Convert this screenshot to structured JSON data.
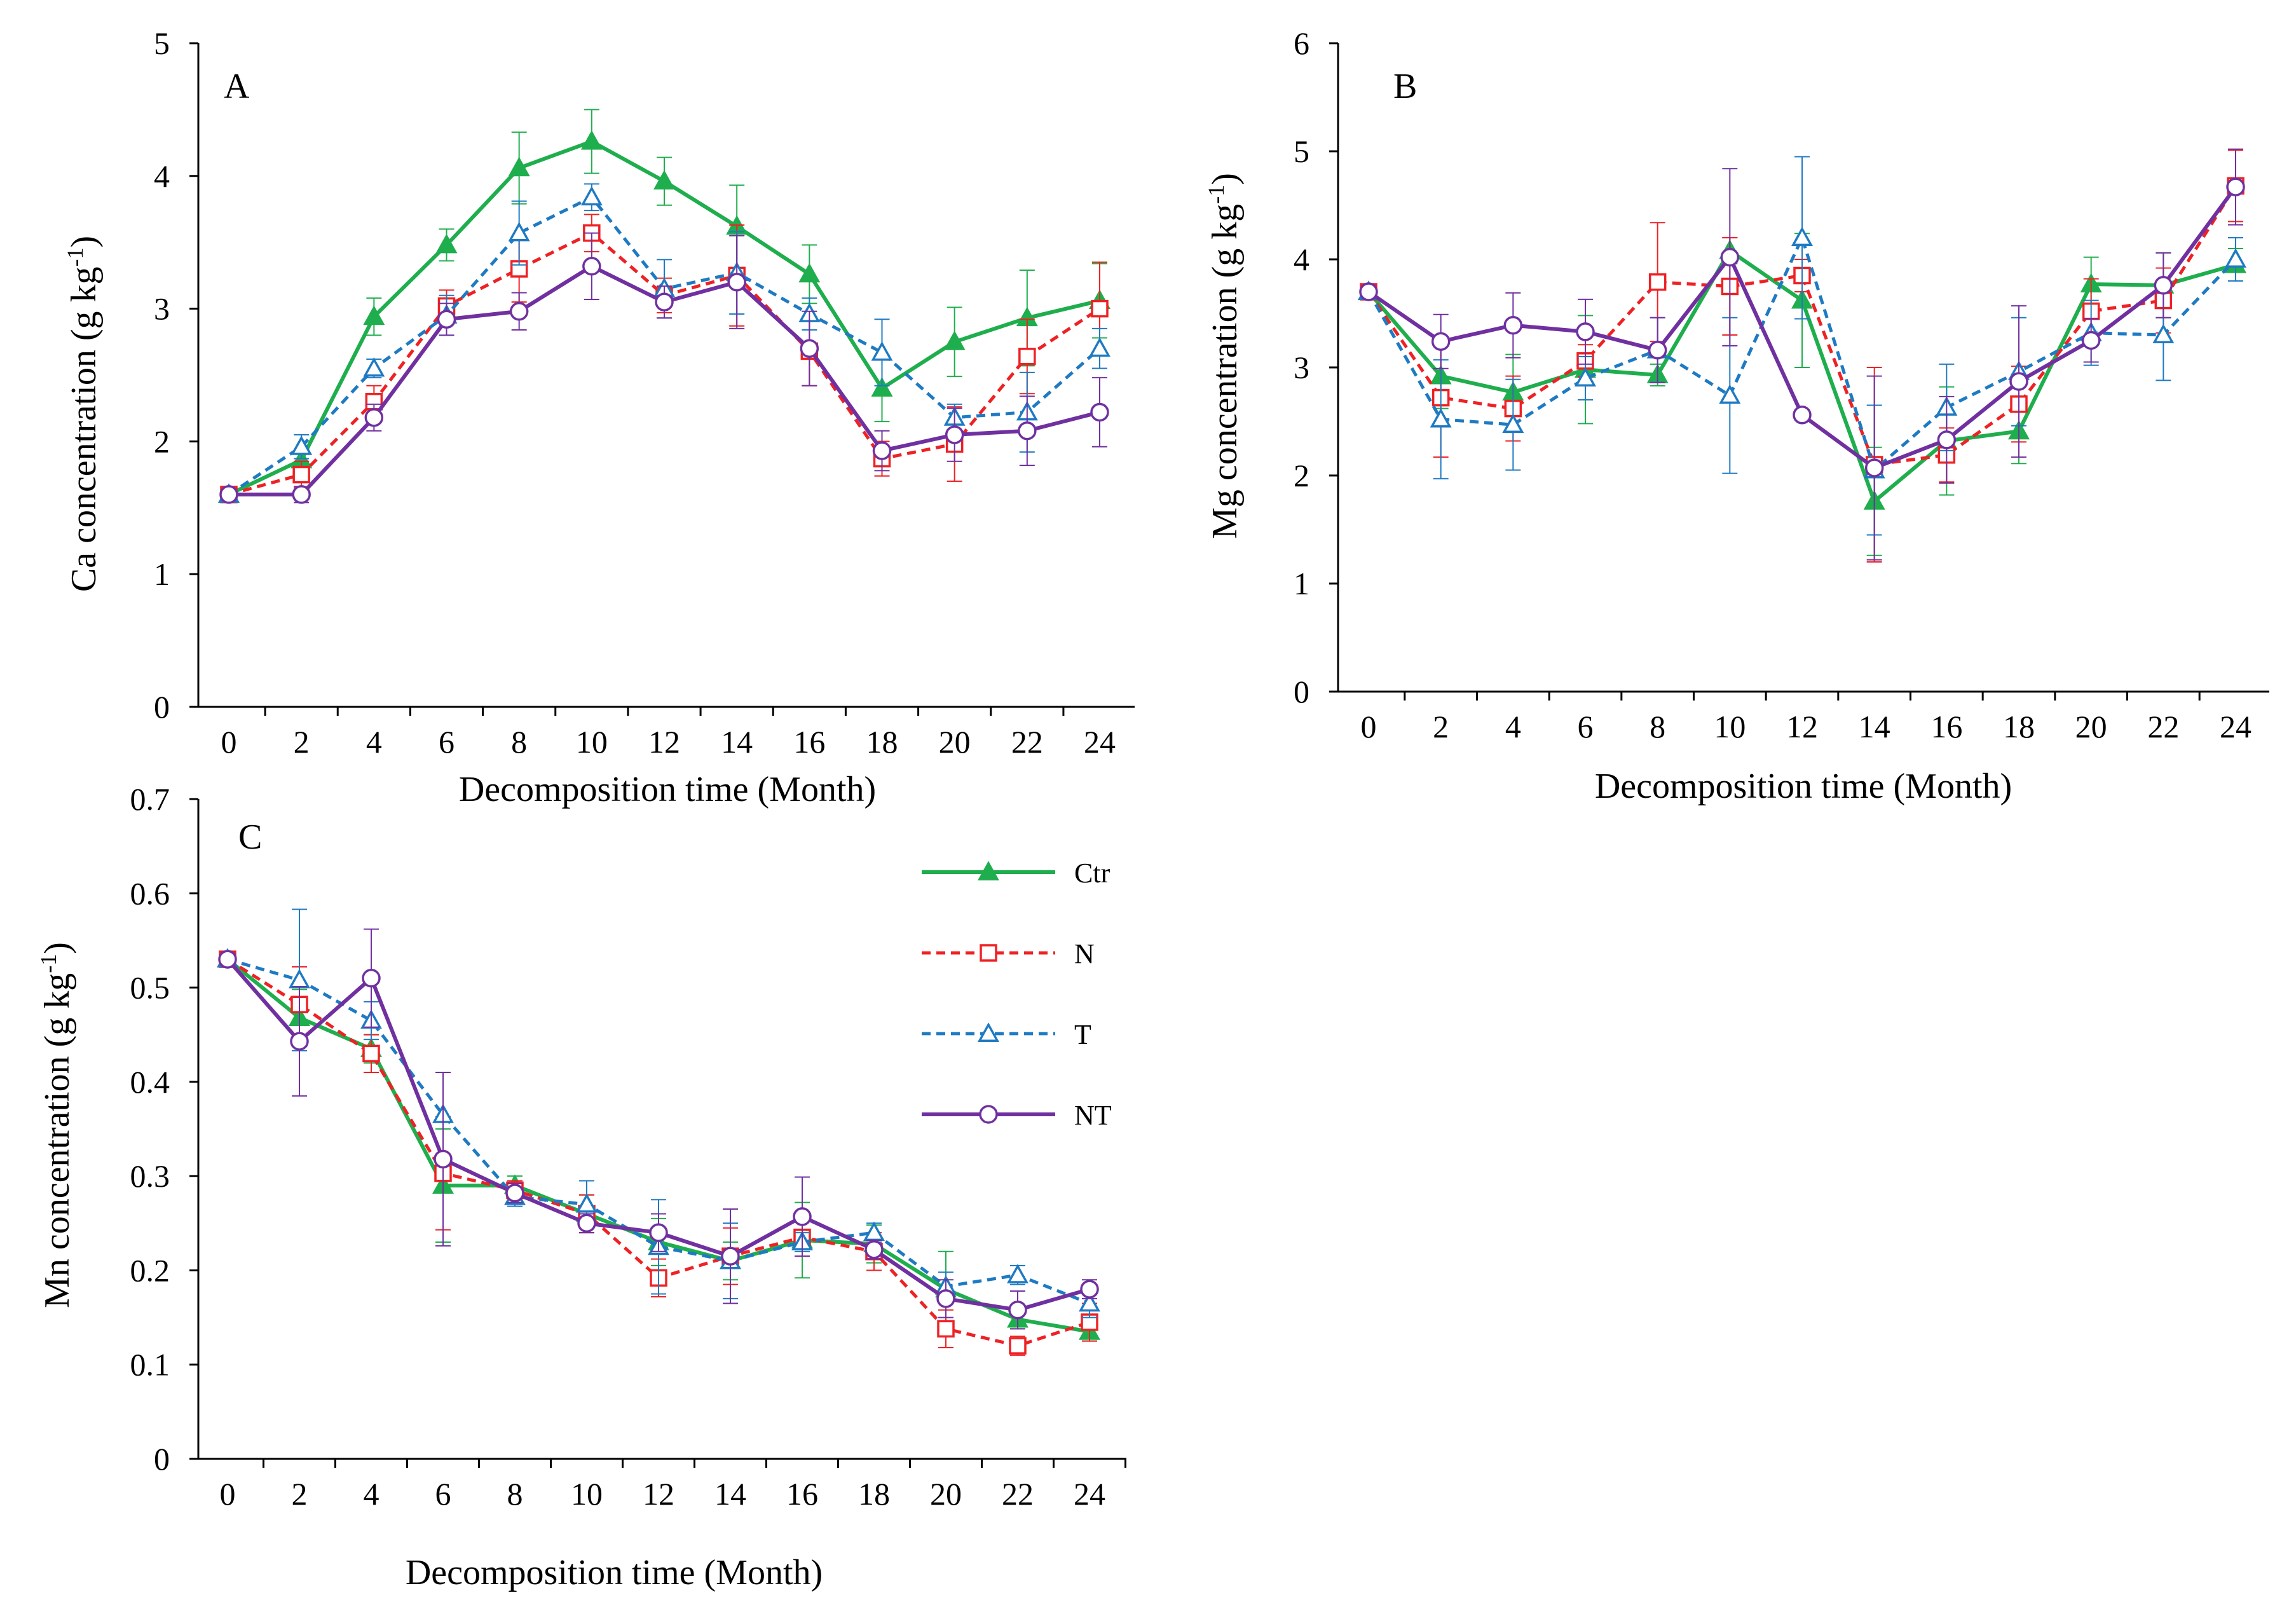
{
  "series_styles": [
    {
      "name": "Ctr",
      "color": "#1fae4d",
      "dash": "solid",
      "marker": "triangle-filled"
    },
    {
      "name": "N",
      "color": "#ee2124",
      "dash": "dashed",
      "marker": "square-open"
    },
    {
      "name": "T",
      "color": "#1e7ac2",
      "dash": "dashed",
      "marker": "triangle-open"
    },
    {
      "name": "NT",
      "color": "#7030a0",
      "dash": "solid",
      "marker": "circle-open"
    }
  ],
  "legend": {
    "labels": [
      "Ctr",
      "N",
      "T",
      "NT"
    ],
    "position": "upper-right of panel C"
  },
  "chart_data": [
    {
      "panel": "A",
      "type": "line",
      "xlabel": "Decomposition time (Month)",
      "ylabel": "Ca concentration (g kg⁻¹)",
      "ylim": [
        0,
        5
      ],
      "yticks": [
        0,
        1,
        2,
        3,
        4,
        5
      ],
      "x": [
        0,
        2,
        4,
        6,
        8,
        10,
        12,
        14,
        16,
        18,
        20,
        22,
        24
      ],
      "series": [
        {
          "name": "Ctr",
          "values": [
            1.6,
            1.86,
            2.94,
            3.48,
            4.06,
            4.26,
            3.96,
            3.62,
            3.26,
            2.4,
            2.75,
            2.93,
            3.06
          ],
          "errors": [
            0.03,
            0.08,
            0.14,
            0.12,
            0.27,
            0.24,
            0.18,
            0.31,
            0.22,
            0.25,
            0.26,
            0.36,
            0.28
          ]
        },
        {
          "name": "N",
          "values": [
            1.6,
            1.75,
            2.3,
            3.02,
            3.3,
            3.57,
            3.1,
            3.25,
            2.68,
            1.87,
            1.98,
            2.64,
            3.0
          ],
          "errors": [
            0.03,
            0.1,
            0.12,
            0.12,
            0.25,
            0.14,
            0.13,
            0.38,
            0.26,
            0.13,
            0.28,
            0.28,
            0.35
          ]
        },
        {
          "name": "T",
          "values": [
            1.6,
            1.96,
            2.55,
            2.95,
            3.57,
            3.84,
            3.15,
            3.27,
            2.96,
            2.67,
            2.18,
            2.22,
            2.7
          ],
          "errors": [
            0.03,
            0.09,
            0.07,
            0.15,
            0.24,
            0.1,
            0.22,
            0.31,
            0.12,
            0.25,
            0.1,
            0.3,
            0.15
          ]
        },
        {
          "name": "NT",
          "values": [
            1.6,
            1.6,
            2.18,
            2.92,
            2.98,
            3.32,
            3.05,
            3.2,
            2.7,
            1.93,
            2.05,
            2.08,
            2.22
          ],
          "errors": [
            0.03,
            0.06,
            0.1,
            0.12,
            0.14,
            0.25,
            0.12,
            0.35,
            0.28,
            0.15,
            0.2,
            0.26,
            0.26
          ]
        }
      ]
    },
    {
      "panel": "B",
      "type": "line",
      "xlabel": "Decomposition time (Month)",
      "ylabel": "Mg concentration (g kg⁻¹)",
      "ylim": [
        0,
        6
      ],
      "yticks": [
        0,
        1,
        2,
        3,
        4,
        5,
        6
      ],
      "x": [
        0,
        2,
        4,
        6,
        8,
        10,
        12,
        14,
        16,
        18,
        20,
        22,
        24
      ],
      "series": [
        {
          "name": "Ctr",
          "values": [
            3.7,
            2.92,
            2.77,
            2.98,
            2.93,
            4.08,
            3.62,
            1.76,
            2.32,
            2.41,
            3.77,
            3.76,
            3.95
          ],
          "errors": [
            0.04,
            0.3,
            0.35,
            0.5,
            0.1,
            0.12,
            0.62,
            0.5,
            0.5,
            0.3,
            0.25,
            0.3,
            0.15
          ]
        },
        {
          "name": "N",
          "values": [
            3.7,
            2.72,
            2.62,
            3.06,
            3.79,
            3.75,
            3.85,
            2.1,
            2.19,
            2.66,
            3.52,
            3.62,
            4.68
          ],
          "errors": [
            0.04,
            0.55,
            0.3,
            0.15,
            0.55,
            0.45,
            0.15,
            0.9,
            0.25,
            0.35,
            0.3,
            0.3,
            0.33
          ]
        },
        {
          "name": "T",
          "values": [
            3.7,
            2.52,
            2.47,
            2.9,
            3.16,
            2.74,
            4.2,
            2.05,
            2.63,
            2.96,
            3.32,
            3.3,
            4.0
          ],
          "errors": [
            0.04,
            0.55,
            0.42,
            0.2,
            0.3,
            0.72,
            0.75,
            0.6,
            0.4,
            0.5,
            0.3,
            0.42,
            0.2
          ]
        },
        {
          "name": "NT",
          "values": [
            3.7,
            3.24,
            3.39,
            3.33,
            3.16,
            4.02,
            2.56,
            2.07,
            2.33,
            2.87,
            3.25,
            3.76,
            4.67
          ],
          "errors": [
            0.04,
            0.25,
            0.3,
            0.3,
            0.3,
            0.82,
            0.05,
            0.85,
            0.4,
            0.7,
            0.2,
            0.3,
            0.35
          ]
        }
      ]
    },
    {
      "panel": "C",
      "type": "line",
      "xlabel": "Decomposition time (Month)",
      "ylabel": "Mn concentration (g kg⁻¹)",
      "ylim": [
        0,
        0.7
      ],
      "yticks": [
        0,
        0.1,
        0.2,
        0.3,
        0.4,
        0.5,
        0.6,
        0.7
      ],
      "x": [
        0,
        2,
        4,
        6,
        8,
        10,
        12,
        14,
        16,
        18,
        20,
        22,
        24
      ],
      "series": [
        {
          "name": "Ctr",
          "values": [
            0.53,
            0.468,
            0.435,
            0.29,
            0.29,
            0.26,
            0.23,
            0.21,
            0.232,
            0.228,
            0.18,
            0.148,
            0.135
          ],
          "errors": [
            0.003,
            0.03,
            0.015,
            0.06,
            0.01,
            0.02,
            0.025,
            0.02,
            0.04,
            0.02,
            0.04,
            0.01,
            0.01
          ]
        },
        {
          "name": "N",
          "values": [
            0.53,
            0.482,
            0.43,
            0.303,
            0.285,
            0.26,
            0.192,
            0.215,
            0.235,
            0.22,
            0.138,
            0.12,
            0.145
          ],
          "errors": [
            0.003,
            0.04,
            0.02,
            0.06,
            0.01,
            0.02,
            0.02,
            0.03,
            0.02,
            0.02,
            0.02,
            0.01,
            0.02
          ]
        },
        {
          "name": "T",
          "values": [
            0.53,
            0.508,
            0.465,
            0.365,
            0.278,
            0.27,
            0.225,
            0.21,
            0.23,
            0.24,
            0.183,
            0.195,
            0.165
          ],
          "errors": [
            0.003,
            0.075,
            0.02,
            0.045,
            0.01,
            0.025,
            0.05,
            0.04,
            0.01,
            0.01,
            0.015,
            0.01,
            0.015
          ]
        },
        {
          "name": "NT",
          "values": [
            0.53,
            0.443,
            0.51,
            0.318,
            0.282,
            0.25,
            0.24,
            0.215,
            0.257,
            0.222,
            0.17,
            0.158,
            0.18
          ],
          "errors": [
            0.003,
            0.058,
            0.052,
            0.092,
            0.01,
            0.01,
            0.02,
            0.05,
            0.042,
            0.01,
            0.02,
            0.02,
            0.01
          ]
        }
      ]
    }
  ]
}
